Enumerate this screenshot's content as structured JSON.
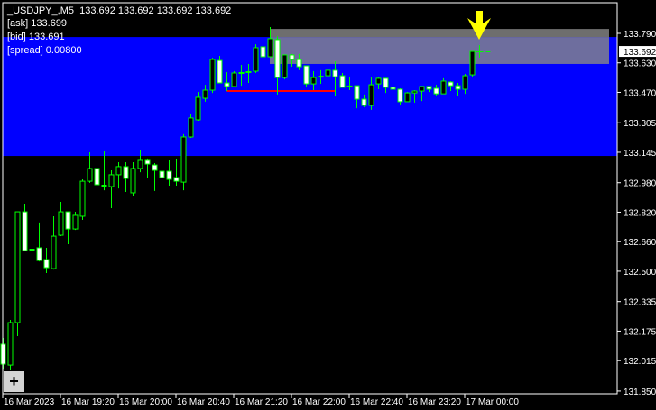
{
  "header": {
    "symbol_line": "_USDJPY_,M5  133.692 133.692 133.692 133.692",
    "ask": "[ask] 133.699",
    "bid": "[bid] 133.691",
    "spread": "[spread] 0.00800"
  },
  "zoom_button": {
    "label": "+"
  },
  "colors": {
    "background": "#000000",
    "band": "#0000ff",
    "zone": "#6e6e9e",
    "zone_top": "#6e6e6e",
    "candle_outline": "#00ff00",
    "bull_fill": "#000000",
    "bear_fill": "#ffffff",
    "level_line": "#ff0000",
    "arrow": "#ffff00",
    "axis_text": "#ffffff"
  },
  "price_axis": {
    "labels": [
      "133.790",
      "133.630",
      "133.470",
      "133.305",
      "133.145",
      "132.980",
      "132.820",
      "132.660",
      "132.500",
      "132.335",
      "132.175",
      "132.015",
      "131.850"
    ],
    "current_price": "133.692",
    "range": [
      131.85,
      133.79
    ]
  },
  "time_axis": {
    "labels": [
      "16 Mar 2023",
      "16 Mar 19:20",
      "16 Mar 20:00",
      "16 Mar 20:40",
      "16 Mar 21:20",
      "16 Mar 22:00",
      "16 Mar 22:40",
      "16 Mar 23:20",
      "17 Mar 00:00"
    ]
  },
  "overlays": {
    "band": {
      "from": 133.125,
      "to": 133.77
    },
    "zone": {
      "from": 133.624,
      "to": 133.814,
      "start_bar": 37
    },
    "level_line": {
      "price": 133.477,
      "start_bar": 31,
      "end_bar": 46
    },
    "arrow": {
      "icon": "arrow-down-icon",
      "bar": 66
    }
  },
  "chart_data": {
    "type": "candlestick",
    "symbol": "_USDJPY_",
    "timeframe": "M5",
    "ohlc": [
      [
        132.104,
        132.138,
        131.967,
        131.996
      ],
      [
        131.991,
        132.236,
        131.962,
        132.221
      ],
      [
        132.221,
        132.822,
        132.148,
        132.822
      ],
      [
        132.822,
        132.866,
        132.612,
        132.612
      ],
      [
        132.617,
        132.69,
        132.558,
        132.617
      ],
      [
        132.627,
        132.764,
        132.553,
        132.558
      ],
      [
        132.563,
        132.627,
        132.49,
        132.519
      ],
      [
        132.514,
        132.798,
        132.509,
        132.69
      ],
      [
        132.695,
        132.876,
        132.69,
        132.822
      ],
      [
        132.822,
        132.822,
        132.646,
        132.729
      ],
      [
        132.729,
        132.822,
        132.724,
        132.803
      ],
      [
        132.798,
        132.998,
        132.778,
        132.988
      ],
      [
        132.988,
        133.145,
        132.979,
        133.057
      ],
      [
        133.057,
        133.062,
        132.944,
        132.969
      ],
      [
        132.964,
        133.15,
        132.939,
        132.964
      ],
      [
        132.959,
        133.047,
        132.842,
        133.023
      ],
      [
        133.023,
        133.091,
        132.949,
        133.067
      ],
      [
        133.067,
        133.091,
        132.93,
        133.003
      ],
      [
        132.925,
        133.091,
        132.91,
        133.057
      ],
      [
        133.057,
        133.159,
        133.037,
        133.101
      ],
      [
        133.101,
        133.111,
        133.003,
        133.081
      ],
      [
        133.076,
        133.086,
        132.935,
        133.047
      ],
      [
        133.042,
        133.081,
        132.959,
        133.008
      ],
      [
        133.042,
        133.101,
        132.964,
        132.998
      ],
      [
        133.008,
        133.106,
        132.964,
        132.988
      ],
      [
        132.983,
        133.243,
        132.939,
        133.228
      ],
      [
        133.228,
        133.35,
        133.223,
        133.331
      ],
      [
        133.321,
        133.472,
        133.316,
        133.443
      ],
      [
        133.438,
        133.511,
        133.419,
        133.482
      ],
      [
        133.482,
        133.658,
        133.467,
        133.648
      ],
      [
        133.643,
        133.668,
        133.521,
        133.521
      ],
      [
        133.521,
        133.58,
        133.477,
        133.502
      ],
      [
        133.502,
        133.585,
        133.502,
        133.575
      ],
      [
        133.575,
        133.619,
        133.506,
        133.575
      ],
      [
        133.58,
        133.624,
        133.521,
        133.58
      ],
      [
        133.585,
        133.731,
        133.575,
        133.712
      ],
      [
        133.717,
        133.717,
        133.643,
        133.663
      ],
      [
        133.663,
        133.824,
        133.663,
        133.761
      ],
      [
        133.756,
        133.775,
        133.458,
        133.55
      ],
      [
        133.55,
        133.673,
        133.541,
        133.673
      ],
      [
        133.673,
        133.678,
        133.609,
        133.648
      ],
      [
        133.648,
        133.678,
        133.59,
        133.609
      ],
      [
        133.614,
        133.614,
        133.502,
        133.516
      ],
      [
        133.516,
        133.585,
        133.482,
        133.55
      ],
      [
        133.555,
        133.59,
        133.516,
        133.555
      ],
      [
        133.56,
        133.609,
        133.56,
        133.59
      ],
      [
        133.59,
        133.638,
        133.453,
        133.555
      ],
      [
        133.56,
        133.575,
        133.497,
        133.497
      ],
      [
        133.502,
        133.555,
        133.482,
        133.502
      ],
      [
        133.506,
        133.506,
        133.384,
        133.433
      ],
      [
        133.433,
        133.458,
        133.389,
        133.399
      ],
      [
        133.399,
        133.555,
        133.375,
        133.511
      ],
      [
        133.516,
        133.555,
        133.487,
        133.546
      ],
      [
        133.546,
        133.546,
        133.467,
        133.497
      ],
      [
        133.497,
        133.541,
        133.467,
        133.487
      ],
      [
        133.487,
        133.492,
        133.399,
        133.419
      ],
      [
        133.419,
        133.472,
        133.419,
        133.467
      ],
      [
        133.467,
        133.482,
        133.414,
        133.477
      ],
      [
        133.477,
        133.502,
        133.423,
        133.502
      ],
      [
        133.502,
        133.502,
        133.472,
        133.487
      ],
      [
        133.492,
        133.511,
        133.453,
        133.462
      ],
      [
        133.462,
        133.546,
        133.462,
        133.531
      ],
      [
        133.526,
        133.531,
        133.477,
        133.506
      ],
      [
        133.506,
        133.521,
        133.448,
        133.487
      ],
      [
        133.487,
        133.57,
        133.462,
        133.56
      ],
      [
        133.565,
        133.692,
        133.555,
        133.692
      ],
      [
        133.692,
        133.692,
        133.692,
        133.692
      ]
    ]
  }
}
